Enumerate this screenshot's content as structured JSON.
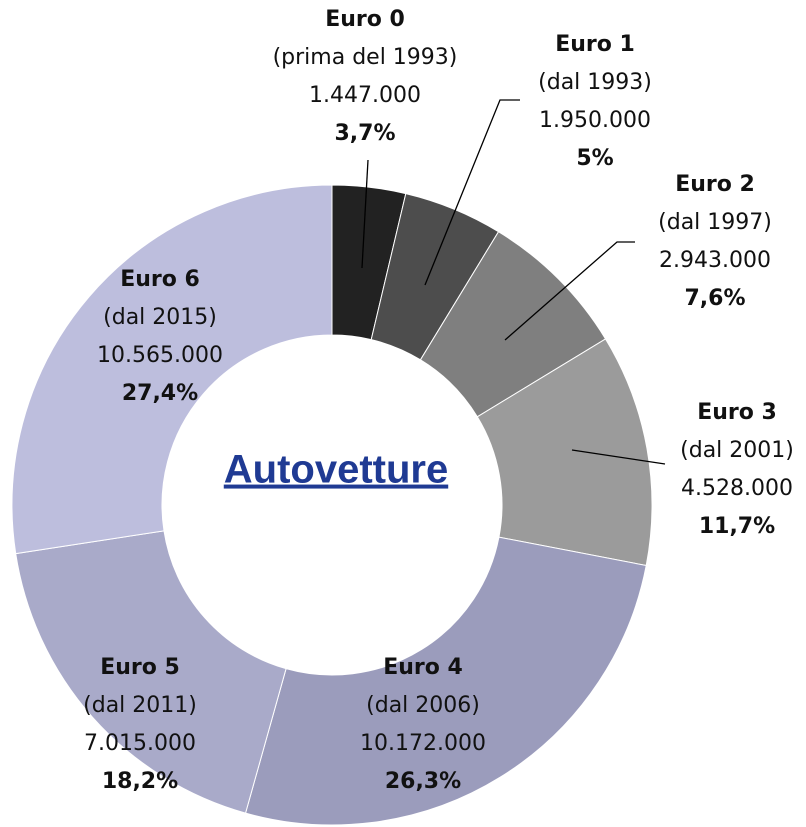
{
  "chart_data": {
    "type": "donut",
    "title": "Autovetture",
    "categories": [
      "Euro 0",
      "Euro 1",
      "Euro 2",
      "Euro 3",
      "Euro 4",
      "Euro 5",
      "Euro 6"
    ],
    "periods": [
      "(prima del 1993)",
      "(dal 1993)",
      "(dal 1997)",
      "(dal 2001)",
      "(dal 2006)",
      "(dal 2011)",
      "(dal 2015)"
    ],
    "counts": [
      "1.447.000",
      "1.950.000",
      "2.943.000",
      "4.528.000",
      "10.172.000",
      "7.015.000",
      "10.565.000"
    ],
    "values": [
      3.7,
      5,
      7.6,
      11.7,
      26.3,
      18.2,
      27.4
    ],
    "value_labels": [
      "3,7%",
      "5%",
      "7,6%",
      "11,7%",
      "26,3%",
      "18,2%",
      "27,4%"
    ],
    "colors": [
      "#222222",
      "#4d4d4d",
      "#7f7f7f",
      "#9b9b9b",
      "#9b9cbc",
      "#a9aac9",
      "#bdbedd"
    ]
  }
}
